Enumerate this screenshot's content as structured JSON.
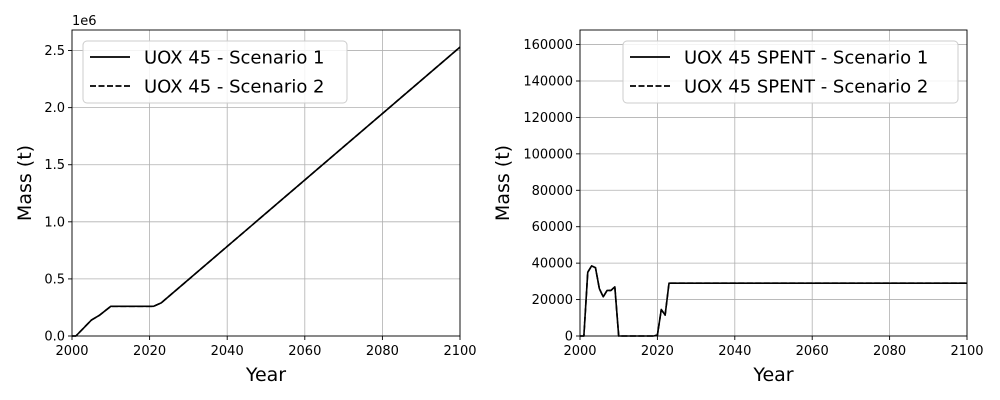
{
  "chart_data": [
    {
      "type": "line",
      "title": "",
      "xlabel": "Year",
      "ylabel": "Mass (t)",
      "offset_text": "1e6",
      "xlim": [
        2000,
        2100
      ],
      "ylim": [
        0,
        2.68
      ],
      "xticks": [
        2000,
        2020,
        2040,
        2060,
        2080,
        2100
      ],
      "yticks": [
        0.0,
        0.5,
        1.0,
        1.5,
        2.0,
        2.5
      ],
      "ytick_labels": [
        "0.0",
        "0.5",
        "1.0",
        "1.5",
        "2.0",
        "2.5"
      ],
      "grid": true,
      "legend": "top-left",
      "series": [
        {
          "name": "UOX 45 - Scenario 1",
          "style": "solid",
          "color": "#000000",
          "x": [
            2000,
            2001,
            2003,
            2005,
            2007,
            2010,
            2015,
            2021,
            2023,
            2100
          ],
          "y": [
            0,
            0.0,
            0.07,
            0.14,
            0.18,
            0.26,
            0.26,
            0.26,
            0.29,
            2.53
          ]
        },
        {
          "name": "UOX 45 - Scenario 2",
          "style": "dashed",
          "color": "#000000",
          "x": [
            2000,
            2001,
            2003,
            2005,
            2007,
            2010,
            2015,
            2021,
            2023,
            2100
          ],
          "y": [
            0,
            0.0,
            0.07,
            0.14,
            0.18,
            0.26,
            0.26,
            0.26,
            0.29,
            2.53
          ]
        }
      ]
    },
    {
      "type": "line",
      "title": "",
      "xlabel": "Year",
      "ylabel": "Mass (t)",
      "xlim": [
        2000,
        2100
      ],
      "ylim": [
        0,
        168000
      ],
      "xticks": [
        2000,
        2020,
        2040,
        2060,
        2080,
        2100
      ],
      "yticks": [
        0,
        20000,
        40000,
        60000,
        80000,
        100000,
        120000,
        140000,
        160000
      ],
      "ytick_labels": [
        "0",
        "20000",
        "40000",
        "60000",
        "80000",
        "100000",
        "120000",
        "140000",
        "160000"
      ],
      "grid": true,
      "legend": "top-right",
      "series": [
        {
          "name": "UOX 45 SPENT - Scenario 1",
          "style": "solid",
          "color": "#000000",
          "x": [
            2000,
            2001,
            2002,
            2003,
            2004,
            2005,
            2006,
            2007,
            2008,
            2009,
            2010,
            2015,
            2019,
            2020,
            2021,
            2022,
            2023,
            2100
          ],
          "y": [
            0,
            0,
            35000,
            38500,
            37500,
            26000,
            21500,
            25000,
            25000,
            27000,
            0,
            0,
            0,
            500,
            14500,
            11500,
            29000,
            29000
          ]
        },
        {
          "name": "UOX 45 SPENT - Scenario 2",
          "style": "dashed",
          "color": "#000000",
          "x": [
            2000,
            2001,
            2002,
            2003,
            2004,
            2005,
            2006,
            2007,
            2008,
            2009,
            2010,
            2015,
            2019,
            2020,
            2021,
            2022,
            2023,
            2100
          ],
          "y": [
            0,
            0,
            35000,
            38500,
            37500,
            26000,
            21500,
            25000,
            25000,
            27000,
            0,
            0,
            0,
            500,
            14500,
            11500,
            29000,
            29000
          ]
        }
      ]
    }
  ]
}
